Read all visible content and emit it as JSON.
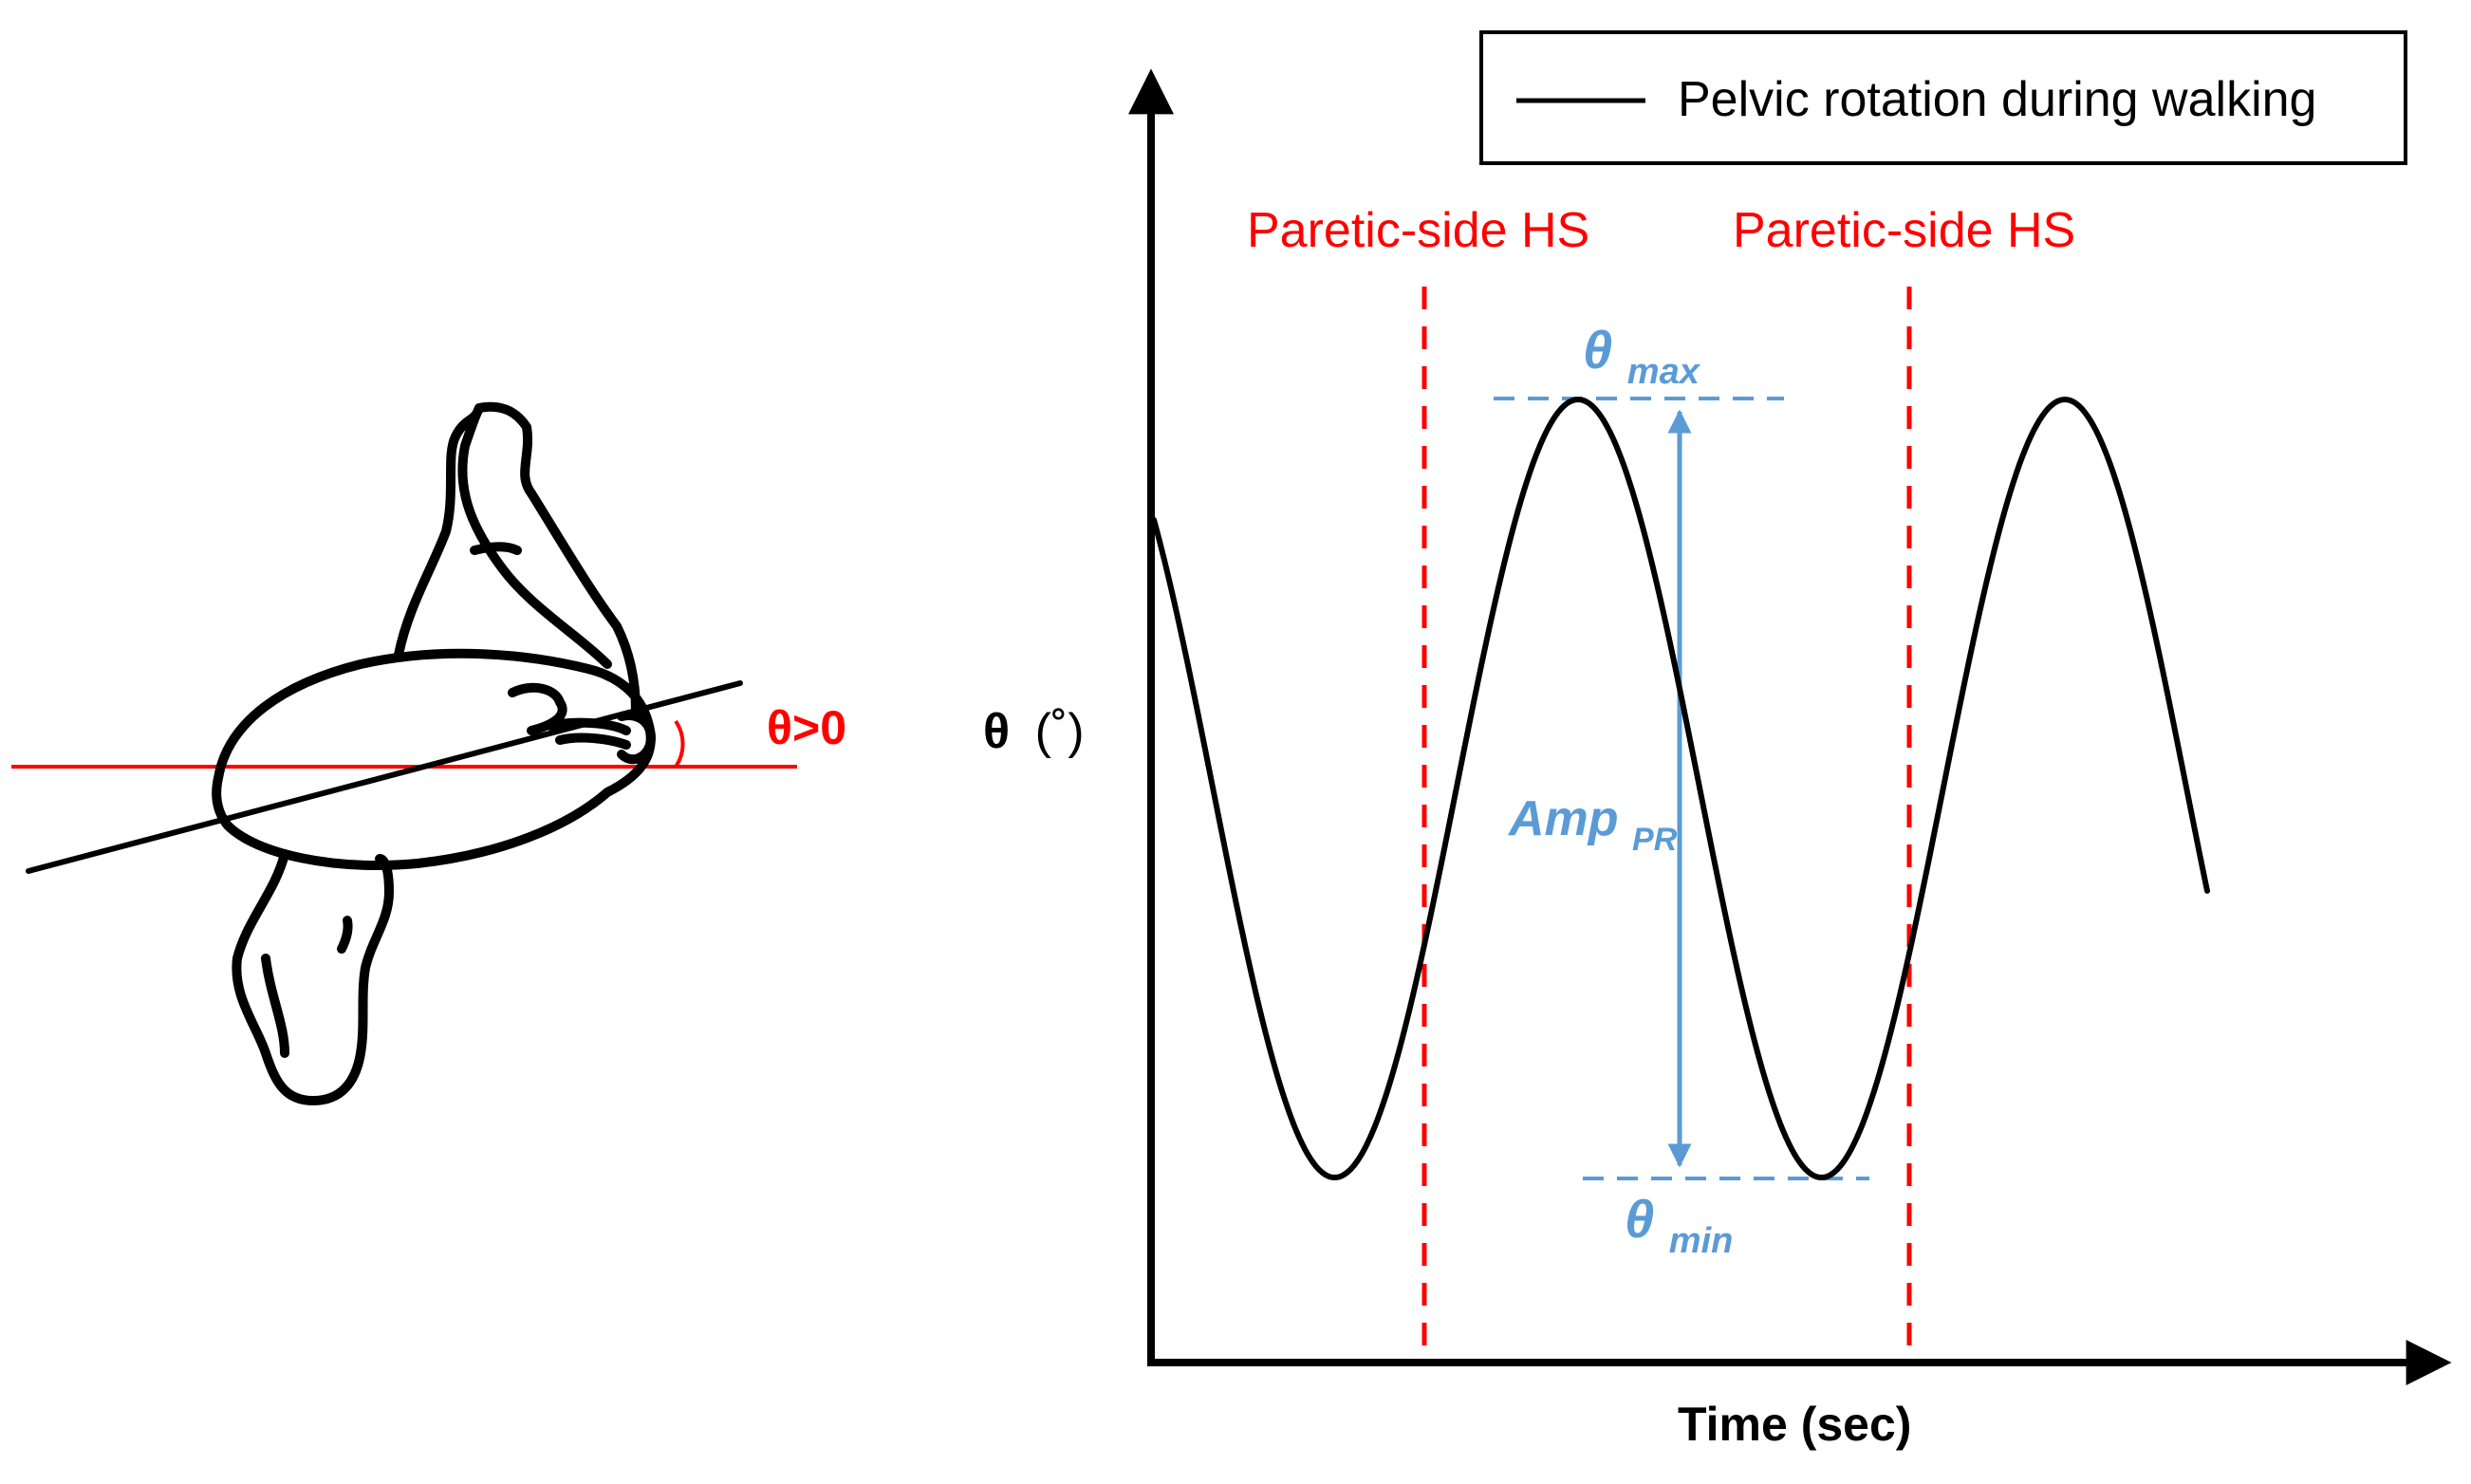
{
  "pelvis_panel": {
    "angle_label": "θ>0"
  },
  "graph": {
    "legend": {
      "entry": "Pelvic rotation during walking"
    },
    "y_axis_label_symbol": "θ",
    "y_axis_label_unit": "(˚)",
    "x_axis_label": "Time (sec)",
    "event_lines": [
      {
        "label": "Paretic-side HS"
      },
      {
        "label": "Paretic-side HS"
      }
    ],
    "theta_max": {
      "symbol": "θ",
      "subscript": "max"
    },
    "theta_min": {
      "symbol": "θ",
      "subscript": "min"
    },
    "amplitude": {
      "symbol": "Amp",
      "subscript": "PR"
    }
  },
  "colors": {
    "curve": "#000000",
    "event_lines": "#ff0000",
    "annotation_blue": "#5b9bd5",
    "reference_line": "#ff0000"
  }
}
